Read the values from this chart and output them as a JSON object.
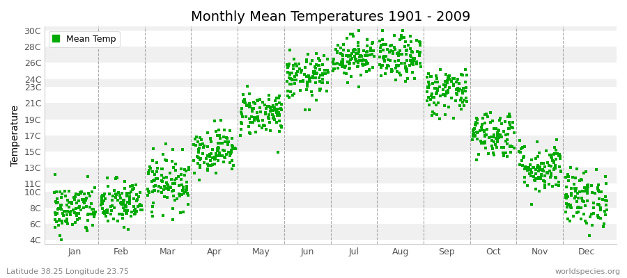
{
  "title": "Monthly Mean Temperatures 1901 - 2009",
  "ylabel": "Temperature",
  "xlabel_bottom_left": "Latitude 38.25 Longitude 23.75",
  "xlabel_bottom_right": "worldspecies.org",
  "legend_label": "Mean Temp",
  "yticks": [
    4,
    6,
    8,
    10,
    11,
    13,
    15,
    17,
    19,
    21,
    23,
    24,
    26,
    28,
    30
  ],
  "ytick_labels": [
    "4C",
    "6C",
    "8C",
    "10C",
    "11C",
    "13C",
    "15C",
    "17C",
    "19C",
    "21C",
    "23C",
    "24C",
    "26C",
    "28C",
    "30C"
  ],
  "ylim": [
    3.5,
    30.5
  ],
  "month_names": [
    "Jan",
    "Feb",
    "Mar",
    "Apr",
    "May",
    "Jun",
    "Jul",
    "Aug",
    "Sep",
    "Oct",
    "Nov",
    "Dec"
  ],
  "dot_color": "#00aa00",
  "dot_size": 6,
  "background_color": "#ffffff",
  "plot_bg_color": "#ffffff",
  "stripe_color_a": "#f0f0f0",
  "stripe_color_b": "#ffffff",
  "vline_color": "#888888",
  "title_fontsize": 14,
  "axis_label_fontsize": 10,
  "tick_fontsize": 9,
  "monthly_mean_temps": [
    7.8,
    8.5,
    11.2,
    15.2,
    19.8,
    24.2,
    26.8,
    26.5,
    22.5,
    17.2,
    13.0,
    9.2
  ],
  "monthly_std_temps": [
    1.6,
    1.5,
    1.7,
    1.4,
    1.4,
    1.4,
    1.3,
    1.4,
    1.5,
    1.5,
    1.6,
    1.8
  ],
  "n_years": 109,
  "seed": 42,
  "xlim_left": -0.15,
  "xlim_right": 12.15
}
